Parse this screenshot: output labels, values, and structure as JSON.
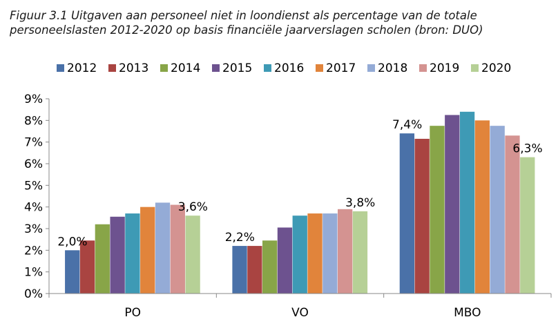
{
  "figure": {
    "title_line1": "Figuur 3.1 Uitgaven aan personeel niet in loondienst als percentage van de totale",
    "title_line2": "personeelslasten 2012-2020 op basis financiële jaarverslagen scholen (bron: DUO)"
  },
  "chart_data": {
    "type": "bar",
    "title": "Figuur 3.1 Uitgaven aan personeel niet in loondienst als percentage van de totale personeelslasten 2012-2020 op basis financiële jaarverslagen scholen (bron: DUO)",
    "xlabel": "",
    "ylabel": "",
    "categories": [
      "PO",
      "VO",
      "MBO"
    ],
    "ylim": [
      0,
      9
    ],
    "y_ticks": [
      0,
      1,
      2,
      3,
      4,
      5,
      6,
      7,
      8,
      9
    ],
    "y_tick_labels": [
      "0%",
      "1%",
      "2%",
      "3%",
      "4%",
      "5%",
      "6%",
      "7%",
      "8%",
      "9%"
    ],
    "legend_position": "top",
    "grid": false,
    "series": [
      {
        "name": "2012",
        "color": "#4a71a8",
        "values": [
          2.0,
          2.2,
          7.4
        ]
      },
      {
        "name": "2013",
        "color": "#a94441",
        "values": [
          2.45,
          2.2,
          7.15
        ]
      },
      {
        "name": "2014",
        "color": "#88a548",
        "values": [
          3.2,
          2.45,
          7.75
        ]
      },
      {
        "name": "2015",
        "color": "#6d528f",
        "values": [
          3.55,
          3.05,
          8.25
        ]
      },
      {
        "name": "2016",
        "color": "#3e9ab5",
        "values": [
          3.7,
          3.6,
          8.4
        ]
      },
      {
        "name": "2017",
        "color": "#e1843b",
        "values": [
          4.0,
          3.7,
          8.0
        ]
      },
      {
        "name": "2018",
        "color": "#94abd6",
        "values": [
          4.2,
          3.7,
          7.75
        ]
      },
      {
        "name": "2019",
        "color": "#d49391",
        "values": [
          4.1,
          3.9,
          7.3
        ]
      },
      {
        "name": "2020",
        "color": "#b6d096",
        "values": [
          3.6,
          3.8,
          6.3
        ]
      }
    ],
    "annotations": [
      {
        "category": "PO",
        "series": "2012",
        "text": "2,0%"
      },
      {
        "category": "PO",
        "series": "2020",
        "text": "3,6%"
      },
      {
        "category": "VO",
        "series": "2012",
        "text": "2,2%"
      },
      {
        "category": "VO",
        "series": "2020",
        "text": "3,8%"
      },
      {
        "category": "MBO",
        "series": "2012",
        "text": "7,4%"
      },
      {
        "category": "MBO",
        "series": "2020",
        "text": "6,3%"
      }
    ]
  }
}
